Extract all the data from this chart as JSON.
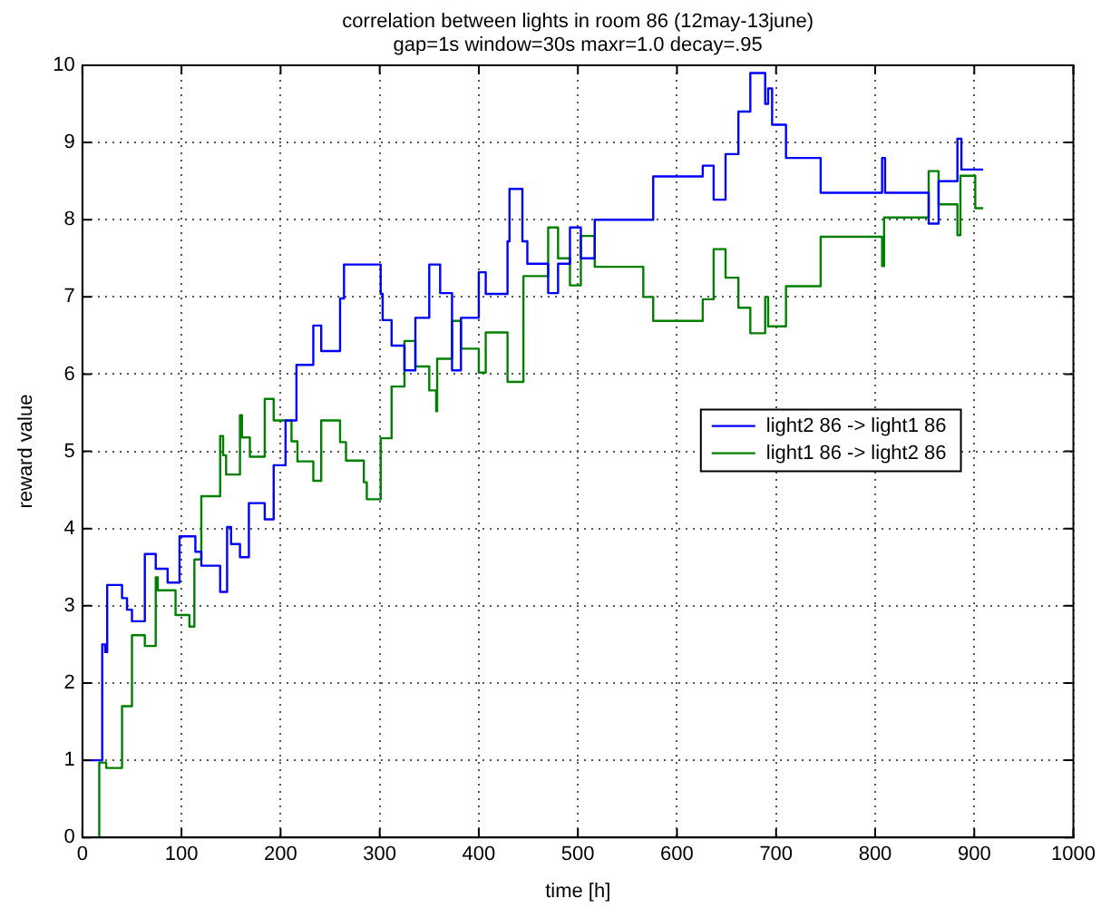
{
  "chart_data": {
    "type": "step",
    "title": "correlation between lights in room 86 (12may-13june)",
    "subtitle": "gap=1s window=30s maxr=1.0 decay=.95",
    "xlabel": "time [h]",
    "ylabel": "reward value",
    "xlim": [
      0,
      1000
    ],
    "xticks": [
      0,
      100,
      200,
      300,
      400,
      500,
      600,
      700,
      800,
      900,
      1000
    ],
    "ylim": [
      0,
      10
    ],
    "yticks": [
      0,
      1,
      2,
      3,
      4,
      5,
      6,
      7,
      8,
      9,
      10
    ],
    "grid": true,
    "legend": "right",
    "line_style": "solid",
    "series": [
      {
        "name": "light2 86 -> light1 86",
        "color": "#0000ff",
        "x": [
          0,
          20,
          23,
          25,
          40,
          45,
          50,
          63,
          74,
          86,
          98,
          114,
          120,
          139,
          146,
          150,
          159,
          168,
          184,
          193,
          205,
          216,
          233,
          241,
          260,
          264,
          301,
          303,
          312,
          325,
          336,
          350,
          361,
          373,
          382,
          400,
          407,
          429,
          431,
          444,
          449,
          470,
          480,
          492,
          503,
          517,
          576,
          626,
          637,
          649,
          662,
          674,
          689,
          692,
          696,
          710,
          745,
          807,
          810,
          854,
          864,
          883,
          887,
          909
        ],
        "values": [
          1,
          2.5,
          2.4,
          3.27,
          3.1,
          2.95,
          2.8,
          3.67,
          3.48,
          3.3,
          3.9,
          3.7,
          3.52,
          3.18,
          4.02,
          3.8,
          3.63,
          4.33,
          4.12,
          4.82,
          5.4,
          6.12,
          6.63,
          6.3,
          6.98,
          7.42,
          7.04,
          6.7,
          6.37,
          6.05,
          6.73,
          7.42,
          7.05,
          6.05,
          6.73,
          7.32,
          7.04,
          7.72,
          8.4,
          7.72,
          7.43,
          7.05,
          7.43,
          7.9,
          7.5,
          8.0,
          8.56,
          8.7,
          8.26,
          8.85,
          9.4,
          9.9,
          9.5,
          9.7,
          9.23,
          8.8,
          8.35,
          8.8,
          8.35,
          7.95,
          8.5,
          9.05,
          8.65,
          8.65
        ]
      },
      {
        "name": "light1 86 -> light2 86",
        "color": "#008000",
        "x": [
          17,
          17,
          24,
          40,
          50,
          63,
          74,
          76,
          94,
          108,
          113,
          120,
          139,
          142,
          145,
          159,
          161,
          169,
          184,
          193,
          211,
          217,
          233,
          241,
          260,
          266,
          284,
          287,
          301,
          312,
          325,
          336,
          350,
          357,
          358,
          373,
          382,
          400,
          407,
          429,
          445,
          470,
          480,
          492,
          503,
          517,
          566,
          576,
          626,
          637,
          649,
          662,
          674,
          689,
          692,
          710,
          745,
          807,
          809,
          854,
          864,
          883,
          886,
          901,
          909
        ],
        "values": [
          0,
          0.97,
          0.9,
          1.7,
          2.62,
          2.48,
          3.37,
          3.2,
          2.88,
          2.73,
          3.6,
          4.42,
          5.2,
          4.95,
          4.7,
          5.47,
          5.18,
          4.93,
          5.68,
          5.4,
          5.13,
          4.87,
          4.62,
          5.4,
          5.12,
          4.88,
          4.6,
          4.38,
          5.17,
          5.84,
          6.43,
          6.1,
          5.79,
          5.52,
          6.2,
          6.69,
          6.33,
          6.02,
          6.54,
          5.9,
          7.27,
          7.9,
          7.5,
          7.15,
          7.79,
          7.39,
          7.0,
          6.69,
          6.97,
          7.62,
          7.25,
          6.86,
          6.53,
          7.0,
          6.62,
          7.14,
          7.78,
          7.4,
          8.03,
          8.63,
          8.2,
          7.8,
          8.57,
          8.15,
          8.15
        ]
      }
    ]
  }
}
